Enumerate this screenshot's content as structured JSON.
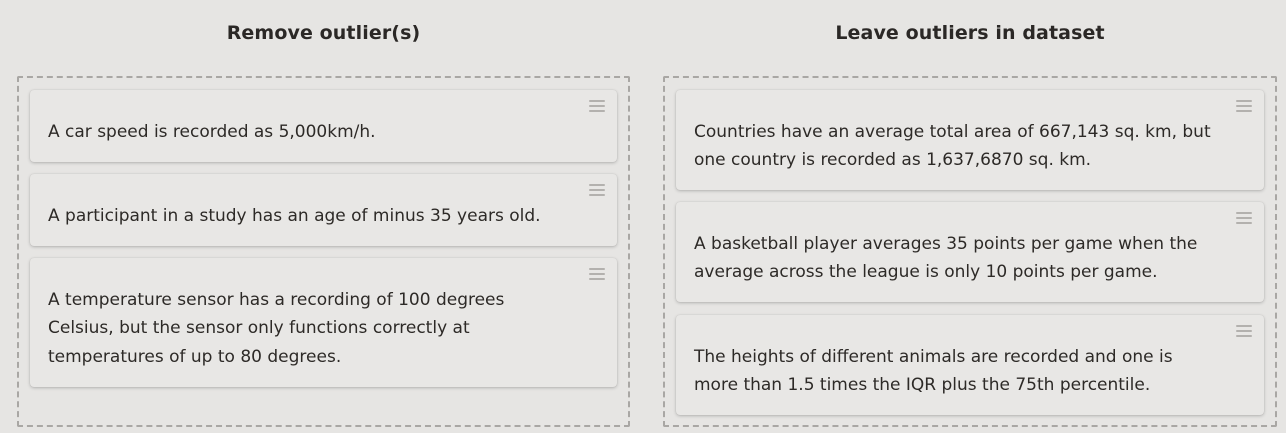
{
  "columns": [
    {
      "title": "Remove outlier(s)",
      "cards": [
        {
          "text": "A car speed is recorded as 5,000km/h."
        },
        {
          "text": "A participant in a study has an age of minus 35 years old."
        },
        {
          "text": "A temperature sensor has a recording of 100 degrees Celsius, but the sensor only functions correctly at temperatures of up to 80 degrees."
        }
      ]
    },
    {
      "title": "Leave outliers in dataset",
      "cards": [
        {
          "text": "Countries have an average total area of 667,143 sq. km, but one country is recorded as 1,637,6870 sq. km."
        },
        {
          "text": "A basketball player averages 35 points per game when the average across the league is only 10 points per game."
        },
        {
          "text": "The heights of different animals are recorded and one is more than 1.5 times the IQR plus the 75th percentile."
        }
      ]
    }
  ],
  "icons": {
    "drag_handle": "drag-handle-icon"
  }
}
